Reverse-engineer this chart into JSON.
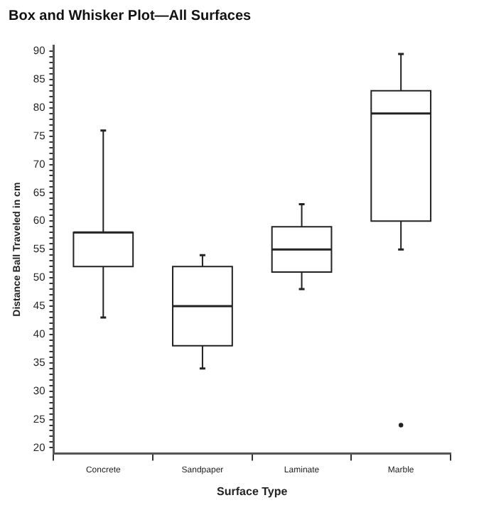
{
  "chart_data": {
    "type": "box",
    "title": "Box and Whisker Plot—All Surfaces",
    "xlabel": "Surface Type",
    "ylabel": "Distance Ball Traveled in cm",
    "categories": [
      "Concrete",
      "Sandpaper",
      "Laminate",
      "Marble"
    ],
    "boxes": [
      {
        "low": 43,
        "q1": 52,
        "median": 58,
        "q3": 58,
        "high": 76
      },
      {
        "low": 34,
        "q1": 38,
        "median": 45,
        "q3": 52,
        "high": 54
      },
      {
        "low": 48,
        "q1": 51,
        "median": 55,
        "q3": 59,
        "high": 63
      },
      {
        "low": 55,
        "q1": 60,
        "median": 79,
        "q3": 83,
        "high": 89.5,
        "outliers": [
          24
        ]
      }
    ],
    "color": "#222222",
    "ylim": [
      19,
      91
    ],
    "yticks": [
      20,
      25,
      30,
      35,
      40,
      45,
      50,
      55,
      60,
      65,
      70,
      75,
      80,
      85,
      90
    ],
    "grid": false,
    "legend": false
  }
}
